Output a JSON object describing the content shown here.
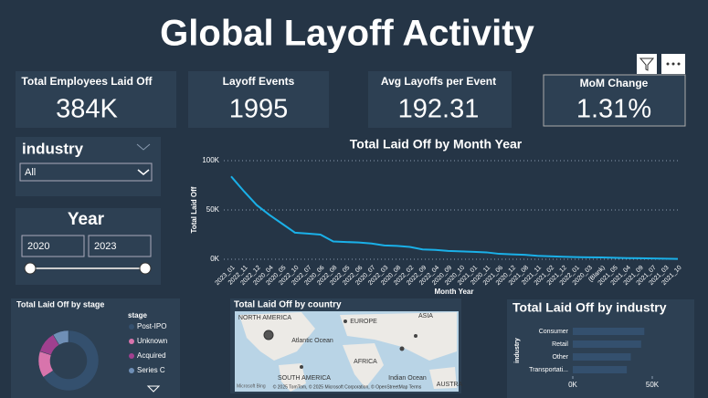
{
  "header": {
    "title": "Global Layoff Activity"
  },
  "kpis": [
    {
      "label": "Total Employees Laid Off",
      "value": "384K"
    },
    {
      "label": "Layoff Events",
      "value": "1995"
    },
    {
      "label": "Avg Layoffs per Event",
      "value": "192.31"
    },
    {
      "label": "MoM Change",
      "value": "1.31%"
    }
  ],
  "slicers": {
    "industry": {
      "title": "industry",
      "selected": "All"
    },
    "year": {
      "title": "Year",
      "from": "2020",
      "to": "2023"
    }
  },
  "chart_data": [
    {
      "type": "line",
      "title": "Total Laid Off by Month Year",
      "x_label": "Month Year",
      "y_label": "Total Laid Off",
      "color": "#1ab0e8",
      "grid": true,
      "categories": [
        "2023_01",
        "2022_11",
        "2022_12",
        "2020_04",
        "2020_05",
        "2022_10",
        "2022_07",
        "2020_06",
        "2022_08",
        "2022_05",
        "2022_06",
        "2020_07",
        "2022_03",
        "2020_08",
        "2022_02",
        "2022_09",
        "2022_04",
        "2020_09",
        "2020_10",
        "2021_01",
        "2020_11",
        "2021_06",
        "2020_12",
        "2021_08",
        "2021_11",
        "2021_02",
        "2021_12",
        "2022_01",
        "2020_03",
        "(Blank)",
        "2021_05",
        "2021_04",
        "2021_09",
        "2021_07",
        "2021_03",
        "2021_10"
      ],
      "values": [
        84000,
        69000,
        55000,
        45000,
        36000,
        27000,
        26000,
        25000,
        18000,
        17500,
        17000,
        16000,
        14000,
        13500,
        12500,
        10000,
        9500,
        8500,
        8000,
        7500,
        7000,
        5500,
        5000,
        4500,
        3500,
        3000,
        2500,
        2200,
        2000,
        1800,
        1500,
        1200,
        1000,
        800,
        600,
        400
      ],
      "ylim": [
        0,
        100000
      ],
      "yticks": [
        {
          "value": 0,
          "label": "0K"
        },
        {
          "value": 50000,
          "label": "50K"
        },
        {
          "value": 100000,
          "label": "100K"
        }
      ]
    },
    {
      "type": "donut",
      "title": "Total Laid Off by stage",
      "legend_title": "stage",
      "series": [
        {
          "name": "Post-IPO",
          "color": "#34506e",
          "values": [
            230000
          ]
        },
        {
          "name": "Unknown",
          "color": "#d874ac",
          "values": [
            50000
          ]
        },
        {
          "name": "Acquired",
          "color": "#a0408f",
          "values": [
            40000
          ]
        },
        {
          "name": "Series C",
          "color": "#6f8fb6",
          "values": [
            30000
          ]
        }
      ]
    },
    {
      "type": "bar",
      "orientation": "horizontal",
      "title": "Total Laid Off by industry",
      "y_label": "industry",
      "color": "#34506e",
      "categories": [
        "Consumer",
        "Retail",
        "Other",
        "Transportati..."
      ],
      "values": [
        45000,
        43000,
        36500,
        34000
      ],
      "xlim": [
        0,
        50000
      ],
      "xticks": [
        {
          "value": 0,
          "label": "0K"
        },
        {
          "value": 50000,
          "label": "50K"
        }
      ]
    }
  ],
  "map": {
    "title": "Total Laid Off by country",
    "labels": [
      "NORTH AMERICA",
      "EUROPE",
      "ASIA",
      "Atlantic Ocean",
      "AFRICA",
      "SOUTH AMERICA",
      "Indian Ocean",
      "AUSTRA"
    ],
    "brand": "Microsoft Bing",
    "attribution": "© 2025 TomTom, © 2025 Microsoft Corporation, © OpenStreetMap Terms"
  }
}
